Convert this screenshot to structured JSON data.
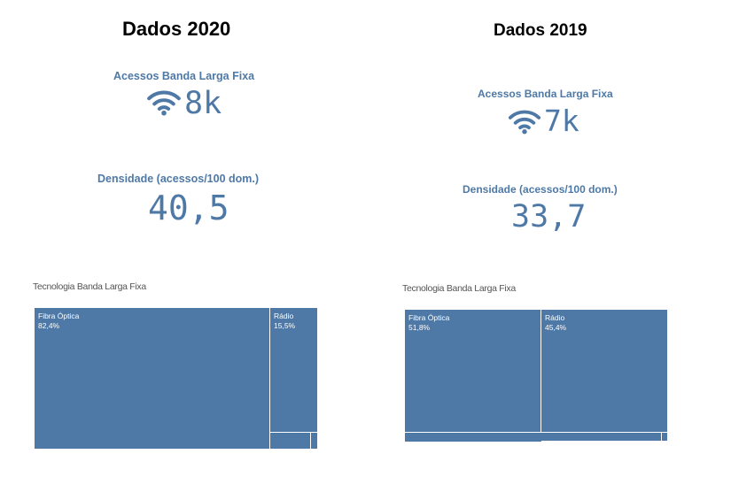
{
  "panels": [
    {
      "title": "Dados 2020",
      "access": {
        "label": "Acessos Banda Larga Fixa",
        "value": "8k",
        "icon": "wifi-icon"
      },
      "density": {
        "label": "Densidade (acessos/100 dom.)",
        "value": "40,5"
      },
      "treemap": {
        "title": "Tecnologia Banda Larga Fixa",
        "cells": [
          {
            "label": "Fibra Óptica",
            "value": "82,4%"
          },
          {
            "label": "Rádio",
            "value": "15,5%"
          },
          {
            "label": "",
            "value": ""
          },
          {
            "label": "",
            "value": ""
          }
        ]
      }
    },
    {
      "title": "Dados 2019",
      "access": {
        "label": "Acessos Banda Larga Fixa",
        "value": "7k",
        "icon": "wifi-icon"
      },
      "density": {
        "label": "Densidade (acessos/100 dom.)",
        "value": "33,7"
      },
      "treemap": {
        "title": "Tecnologia Banda Larga Fixa",
        "cells": [
          {
            "label": "Fibra Óptica",
            "value": "51,8%"
          },
          {
            "label": "Rádio",
            "value": "45,4%"
          },
          {
            "label": "",
            "value": ""
          },
          {
            "label": "",
            "value": ""
          }
        ]
      }
    }
  ],
  "colors": {
    "accent": "#4e79a7",
    "treemap_fill": "#4e79a7",
    "title": "#000000",
    "subtitle": "#555555"
  }
}
